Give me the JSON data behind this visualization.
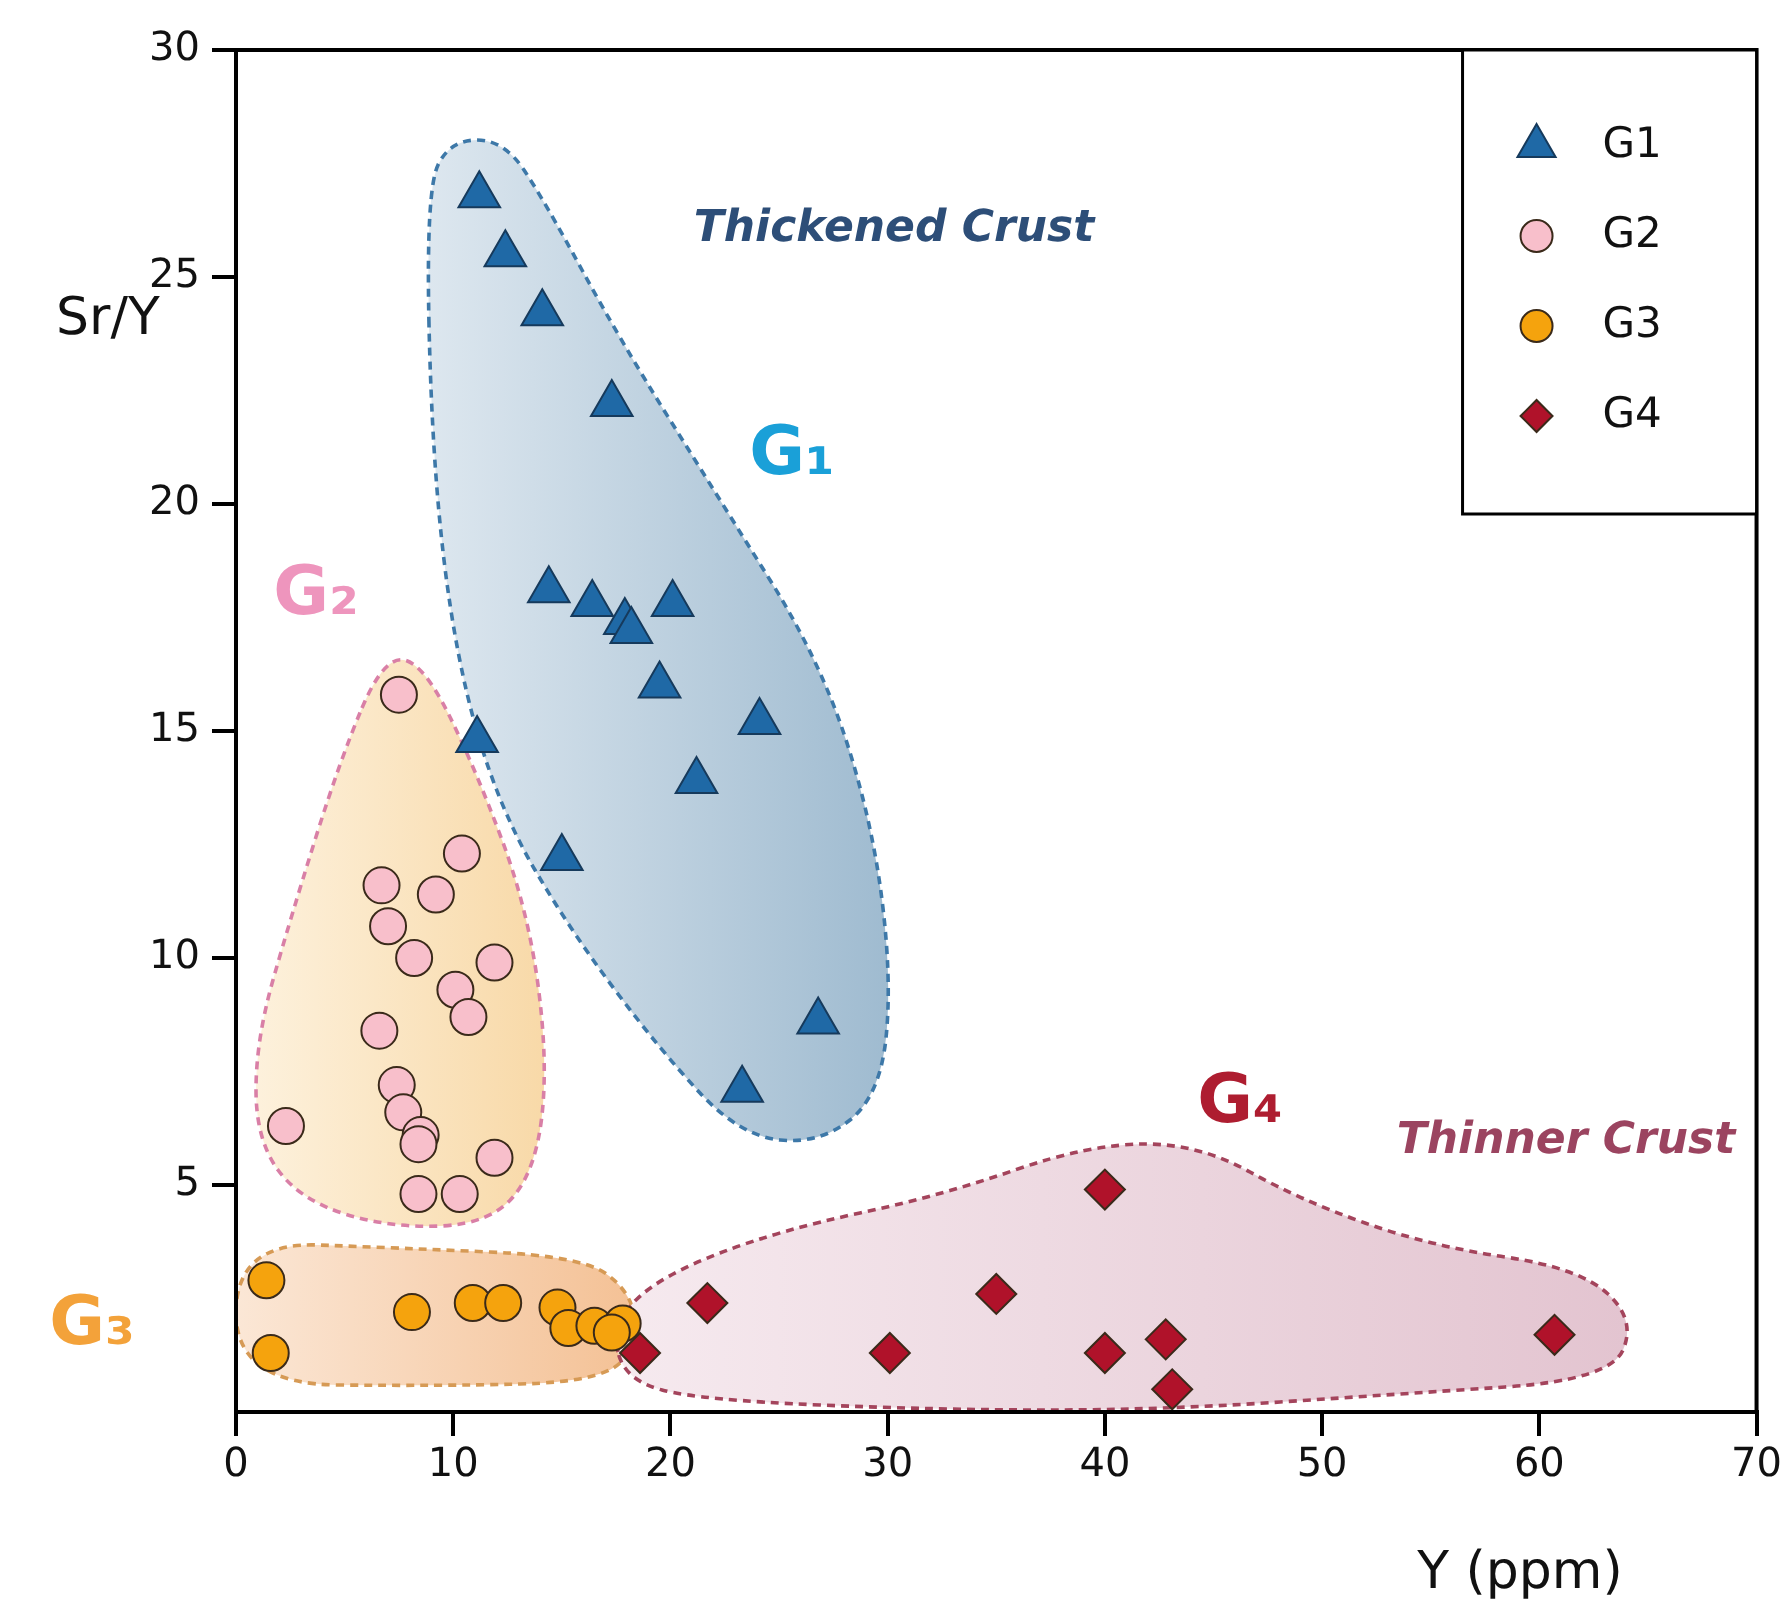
{
  "chart_data": {
    "type": "scatter",
    "xlabel": "Y (ppm)",
    "ylabel": "Sr/Y",
    "xlim": [
      0,
      70
    ],
    "ylim": [
      0,
      30
    ],
    "xticks": [
      0,
      10,
      20,
      30,
      40,
      50,
      60,
      70
    ],
    "yticks": [
      5,
      10,
      15,
      20,
      25,
      30
    ],
    "grid": false,
    "legend": "top right",
    "series": [
      {
        "name": "G1",
        "color": "#1f69a6",
        "marker": "triangle",
        "x": [
          11.2,
          12.4,
          14.1,
          17.3,
          14.4,
          16.4,
          20.1,
          17.9,
          18.2,
          19.5,
          24.1,
          11.1,
          21.2,
          15.0,
          26.8,
          23.3
        ],
        "values": [
          26.8,
          25.5,
          24.2,
          22.2,
          18.1,
          17.8,
          17.8,
          17.4,
          17.2,
          16.0,
          15.2,
          14.8,
          13.9,
          12.2,
          8.6,
          7.1
        ]
      },
      {
        "name": "G2",
        "color": "#f8bfcb",
        "marker": "circle",
        "x": [
          7.5,
          10.4,
          6.7,
          9.2,
          7.0,
          8.2,
          11.9,
          10.1,
          10.7,
          6.6,
          7.4,
          7.7,
          2.3,
          8.5,
          8.4,
          11.9,
          8.4,
          10.3
        ],
        "values": [
          15.8,
          12.3,
          11.6,
          11.4,
          10.7,
          10.0,
          9.9,
          9.3,
          8.7,
          8.4,
          7.2,
          6.6,
          6.3,
          6.1,
          5.9,
          5.6,
          4.8,
          4.8
        ]
      },
      {
        "name": "G3",
        "color": "#f5a30d",
        "marker": "circle",
        "x": [
          1.4,
          1.6,
          8.1,
          10.9,
          12.3,
          14.8,
          15.3,
          16.5,
          17.8,
          17.3
        ],
        "values": [
          2.9,
          1.3,
          2.2,
          2.4,
          2.4,
          2.3,
          1.85,
          1.9,
          1.95,
          1.75
        ]
      },
      {
        "name": "G4",
        "color": "#b0122a",
        "marker": "diamond",
        "x": [
          18.6,
          21.7,
          30.1,
          35.0,
          40.0,
          40.0,
          42.8,
          43.1,
          60.7
        ],
        "values": [
          1.3,
          2.4,
          1.3,
          2.6,
          4.9,
          1.3,
          1.6,
          0.5,
          1.7
        ]
      }
    ],
    "annotations": [
      "Thickened Crust",
      "G₁",
      "G₂",
      "G₃",
      "G₄",
      "Thinner Crust"
    ]
  }
}
